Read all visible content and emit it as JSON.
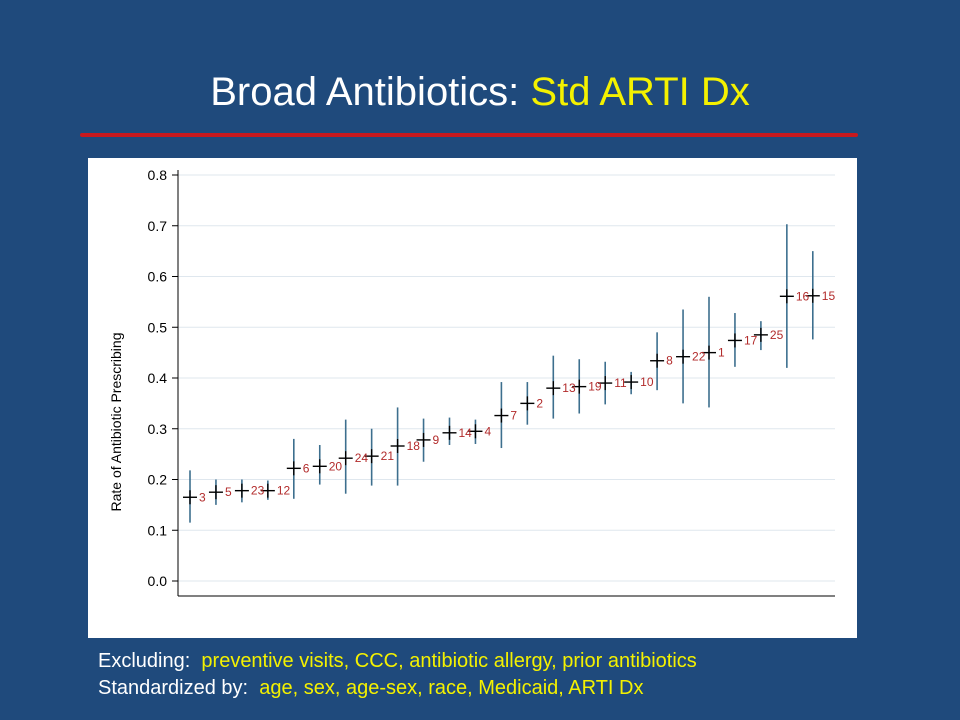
{
  "slide": {
    "title_main": "Broad Antibiotics: ",
    "title_accent": "Std ARTI Dx"
  },
  "footnote": {
    "excluding_label": "Excluding:",
    "excluding_value": "preventive visits, CCC, antibiotic allergy, prior antibiotics",
    "standardized_label": "Standardized by:",
    "standardized_value": "age, sex, age-sex, race, Medicaid, ARTI Dx"
  },
  "colors": {
    "background": "#1f4a7c",
    "accent_text": "#f4f100",
    "rule": "#c8191e",
    "ci_line": "#3d6f8e",
    "point_label": "#b22b2b"
  },
  "chart_data": {
    "type": "scatter",
    "ylabel": "Rate of Antibiotic Prescribing",
    "xlabel": "",
    "ylim": [
      0,
      0.8
    ],
    "yticks": [
      "0.0",
      "0.1",
      "0.2",
      "0.3",
      "0.4",
      "0.5",
      "0.6",
      "0.7",
      "0.8"
    ],
    "grid": true,
    "points": [
      {
        "label": "3",
        "y": 0.165,
        "lo": 0.115,
        "hi": 0.218
      },
      {
        "label": "5",
        "y": 0.175,
        "lo": 0.15,
        "hi": 0.2
      },
      {
        "label": "23",
        "y": 0.178,
        "lo": 0.155,
        "hi": 0.2
      },
      {
        "label": "12",
        "y": 0.178,
        "lo": 0.16,
        "hi": 0.198
      },
      {
        "label": "6",
        "y": 0.222,
        "lo": 0.162,
        "hi": 0.28
      },
      {
        "label": "20",
        "y": 0.226,
        "lo": 0.19,
        "hi": 0.268
      },
      {
        "label": "24",
        "y": 0.242,
        "lo": 0.172,
        "hi": 0.318
      },
      {
        "label": "21",
        "y": 0.246,
        "lo": 0.188,
        "hi": 0.3
      },
      {
        "label": "18",
        "y": 0.266,
        "lo": 0.188,
        "hi": 0.342
      },
      {
        "label": "9",
        "y": 0.278,
        "lo": 0.235,
        "hi": 0.32
      },
      {
        "label": "14",
        "y": 0.292,
        "lo": 0.268,
        "hi": 0.322
      },
      {
        "label": "4",
        "y": 0.295,
        "lo": 0.27,
        "hi": 0.318
      },
      {
        "label": "7",
        "y": 0.326,
        "lo": 0.262,
        "hi": 0.392
      },
      {
        "label": "2",
        "y": 0.35,
        "lo": 0.308,
        "hi": 0.392
      },
      {
        "label": "13",
        "y": 0.38,
        "lo": 0.32,
        "hi": 0.444
      },
      {
        "label": "19",
        "y": 0.383,
        "lo": 0.33,
        "hi": 0.437
      },
      {
        "label": "11",
        "y": 0.39,
        "lo": 0.348,
        "hi": 0.432
      },
      {
        "label": "10",
        "y": 0.392,
        "lo": 0.368,
        "hi": 0.412
      },
      {
        "label": "8",
        "y": 0.434,
        "lo": 0.376,
        "hi": 0.49
      },
      {
        "label": "22",
        "y": 0.442,
        "lo": 0.35,
        "hi": 0.535
      },
      {
        "label": "1",
        "y": 0.45,
        "lo": 0.342,
        "hi": 0.56
      },
      {
        "label": "17",
        "y": 0.474,
        "lo": 0.422,
        "hi": 0.528
      },
      {
        "label": "25",
        "y": 0.485,
        "lo": 0.455,
        "hi": 0.512
      },
      {
        "label": "16",
        "y": 0.561,
        "lo": 0.42,
        "hi": 0.703
      },
      {
        "label": "15",
        "y": 0.562,
        "lo": 0.476,
        "hi": 0.65
      }
    ]
  }
}
